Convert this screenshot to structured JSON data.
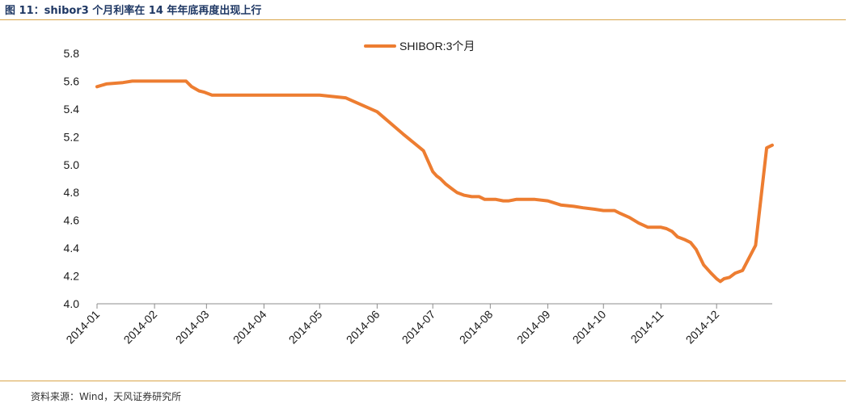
{
  "figure": {
    "title": "图 11：shibor3 个月利率在 14 年年底再度出现上行",
    "source": "资料来源：Wind，天风证券研究所"
  },
  "colors": {
    "series": "#ed7d31",
    "rule": "#d9a54a",
    "title": "#1f3864"
  },
  "chart_data": {
    "type": "line",
    "title": "",
    "xlabel": "",
    "ylabel": "",
    "ylim": [
      4.0,
      5.8
    ],
    "yticks": [
      "5.8",
      "5.6",
      "5.4",
      "5.2",
      "5.0",
      "4.8",
      "4.6",
      "4.4",
      "4.2",
      "4.0"
    ],
    "xticks": [
      "2014-01",
      "2014-02",
      "2014-03",
      "2014-04",
      "2014-05",
      "2014-06",
      "2014-07",
      "2014-08",
      "2014-09",
      "2014-10",
      "2014-11",
      "2014-12"
    ],
    "legend": "top-center",
    "grid": false,
    "series": [
      {
        "name": "SHIBOR:3个月",
        "color": "#ed7d31",
        "x": [
          "2014-01-01",
          "2014-01-06",
          "2014-01-15",
          "2014-01-20",
          "2014-01-28",
          "2014-02-05",
          "2014-02-12",
          "2014-02-18",
          "2014-02-21",
          "2014-02-25",
          "2014-02-28",
          "2014-03-04",
          "2014-03-06",
          "2014-03-10",
          "2014-03-15",
          "2014-03-20",
          "2014-04-01",
          "2014-04-15",
          "2014-05-01",
          "2014-05-15",
          "2014-06-01",
          "2014-06-15",
          "2014-06-26",
          "2014-06-28",
          "2014-07-01",
          "2014-07-03",
          "2014-07-05",
          "2014-07-08",
          "2014-07-11",
          "2014-07-14",
          "2014-07-18",
          "2014-07-22",
          "2014-07-26",
          "2014-07-29",
          "2014-08-01",
          "2014-08-04",
          "2014-08-08",
          "2014-08-11",
          "2014-08-15",
          "2014-08-20",
          "2014-08-25",
          "2014-09-01",
          "2014-09-08",
          "2014-09-15",
          "2014-09-20",
          "2014-09-26",
          "2014-10-01",
          "2014-10-07",
          "2014-10-10",
          "2014-10-15",
          "2014-10-20",
          "2014-10-25",
          "2014-11-01",
          "2014-11-04",
          "2014-11-07",
          "2014-11-10",
          "2014-11-14",
          "2014-11-17",
          "2014-11-20",
          "2014-11-24",
          "2014-11-28",
          "2014-12-01",
          "2014-12-03",
          "2014-12-05",
          "2014-12-08",
          "2014-12-11",
          "2014-12-15",
          "2014-12-22",
          "2014-12-28",
          "2014-12-31"
        ],
        "values": [
          5.56,
          5.58,
          5.59,
          5.6,
          5.6,
          5.6,
          5.6,
          5.6,
          5.56,
          5.53,
          5.52,
          5.5,
          5.5,
          5.5,
          5.5,
          5.5,
          5.5,
          5.5,
          5.5,
          5.48,
          5.38,
          5.22,
          5.1,
          5.04,
          4.95,
          4.92,
          4.9,
          4.86,
          4.83,
          4.8,
          4.78,
          4.77,
          4.77,
          4.75,
          4.75,
          4.75,
          4.74,
          4.74,
          4.75,
          4.75,
          4.75,
          4.74,
          4.71,
          4.7,
          4.69,
          4.68,
          4.67,
          4.67,
          4.65,
          4.62,
          4.58,
          4.55,
          4.55,
          4.54,
          4.52,
          4.48,
          4.46,
          4.44,
          4.39,
          4.28,
          4.22,
          4.18,
          4.16,
          4.18,
          4.19,
          4.22,
          4.24,
          4.42,
          5.12,
          5.14
        ]
      }
    ]
  }
}
